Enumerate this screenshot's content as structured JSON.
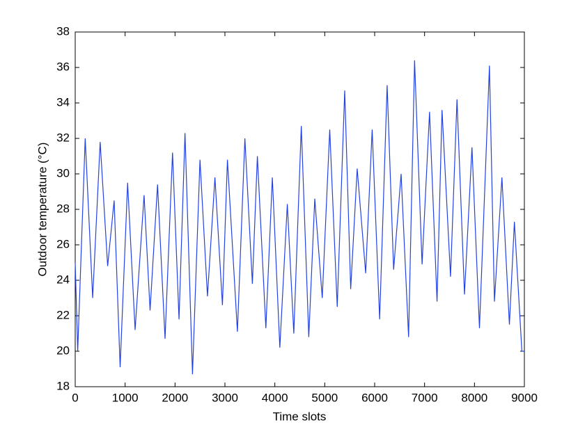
{
  "chart_data": {
    "type": "line",
    "x_label": "Time slots",
    "y_label": "Outdoor temperature (°C)",
    "xlim": [
      0,
      9000
    ],
    "xticks": [
      0,
      1000,
      2000,
      3000,
      4000,
      5000,
      6000,
      7000,
      8000,
      9000
    ],
    "ylim": [
      18,
      38
    ],
    "yticks": [
      18,
      20,
      22,
      24,
      26,
      28,
      30,
      32,
      34,
      36,
      38
    ],
    "series": [
      {
        "color": "#2341e0",
        "x": [
          0,
          50,
          200,
          350,
          500,
          650,
          780,
          900,
          1050,
          1200,
          1380,
          1500,
          1650,
          1800,
          1950,
          2080,
          2200,
          2350,
          2500,
          2650,
          2800,
          2950,
          3050,
          3250,
          3400,
          3550,
          3650,
          3820,
          3950,
          4100,
          4250,
          4380,
          4530,
          4680,
          4800,
          4950,
          5100,
          5250,
          5400,
          5520,
          5650,
          5820,
          5950,
          6100,
          6250,
          6380,
          6530,
          6680,
          6800,
          6950,
          7100,
          7250,
          7350,
          7520,
          7650,
          7800,
          7950,
          8100,
          8300,
          8400,
          8550,
          8700,
          8800,
          8950,
          9000
        ],
        "values": [
          25,
          20,
          32,
          23,
          31.8,
          24.8,
          28.5,
          19.1,
          29.5,
          21.2,
          28.8,
          22.3,
          29.4,
          20.7,
          31.2,
          21.8,
          32.3,
          18.7,
          30.8,
          23.1,
          29.8,
          22.6,
          30.8,
          21.1,
          32,
          23.8,
          31,
          21.3,
          29.8,
          20.2,
          28.3,
          21,
          32.7,
          20.8,
          28.6,
          23,
          32.5,
          22.5,
          34.7,
          23.5,
          30.3,
          24.4,
          32.5,
          21.8,
          35,
          24.6,
          30,
          20.8,
          36.4,
          24.9,
          33.5,
          22.8,
          33.6,
          24.2,
          34.2,
          23.2,
          31.5,
          21.3,
          36.1,
          22.8,
          29.8,
          21.5,
          27.3,
          20,
          20
        ]
      }
    ]
  }
}
